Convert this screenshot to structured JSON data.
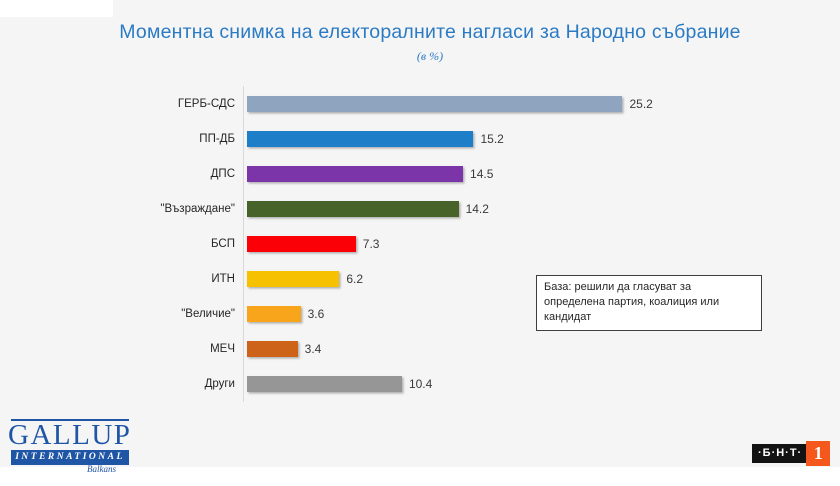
{
  "header": {
    "title": "Моментна снимка на електоралните нагласи за Народно събрание",
    "subtitle": "(в %)"
  },
  "chart_data": {
    "type": "bar",
    "orientation": "horizontal",
    "title": "Моментна снимка на електоралните нагласи за Народно събрание",
    "subtitle": "(в %)",
    "xlabel": "",
    "ylabel": "",
    "xlim": [
      0,
      26
    ],
    "grid": false,
    "legend": false,
    "value_labels": true,
    "categories": [
      "ГЕРБ-СДС",
      "ПП-ДБ",
      "ДПС",
      "\"Възраждане\"",
      "БСП",
      "ИТН",
      "\"Величие\"",
      "МЕЧ",
      "Други"
    ],
    "values": [
      25.2,
      15.2,
      14.5,
      14.2,
      7.3,
      6.2,
      3.6,
      3.4,
      10.4
    ],
    "colors": [
      "#8fa4bf",
      "#1f7ec8",
      "#7c35a8",
      "#47632a",
      "#fb0007",
      "#f5c100",
      "#f9a51c",
      "#cd6318",
      "#969696"
    ]
  },
  "note": {
    "text": "База: решили да гласуват за определена партия, коалиция или кандидат"
  },
  "footer": {
    "gallup": {
      "name": "GALLUP",
      "sub": "INTERNATIONAL",
      "region": "Balkans",
      "brand_color": "#1f55a5"
    },
    "bnt": {
      "label": "·Б·Н·Т·",
      "channel": "1",
      "accent_color": "#f4581d"
    }
  }
}
